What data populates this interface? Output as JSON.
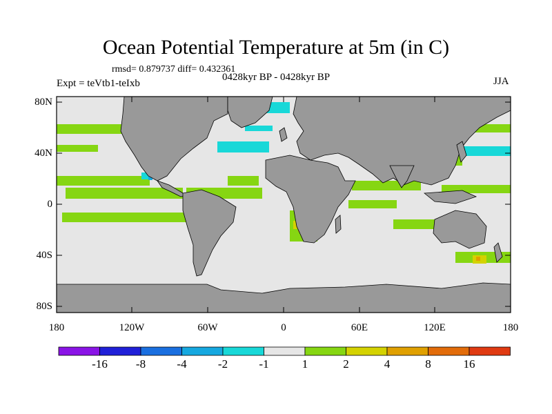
{
  "title": "Ocean Potential Temperature at 5m (in C)",
  "stats_line": "rmsd= 0.879737 diff= 0.432361",
  "experiment": "Expt = teVtb1-teIxb",
  "period": "0428kyr BP - 0428kyr BP",
  "season": "JJA",
  "lat_labels": [
    "80N",
    "40N",
    "0",
    "40S",
    "80S"
  ],
  "lon_labels": [
    "180",
    "120W",
    "60W",
    "0",
    "60E",
    "120E",
    "180"
  ],
  "colorbar": {
    "colors": [
      "#8a14e6",
      "#2020d8",
      "#1a6fe0",
      "#16a8e0",
      "#18d8d8",
      "#e6e6e6",
      "#86d612",
      "#d4d200",
      "#e0a000",
      "#e26c0a",
      "#e03a12"
    ],
    "labels": [
      "-16",
      "-8",
      "-4",
      "-2",
      "-1",
      "1",
      "2",
      "4",
      "8",
      "16"
    ]
  },
  "map_colors": {
    "land": "#999999",
    "ocean_background": "#e6e6e6"
  }
}
